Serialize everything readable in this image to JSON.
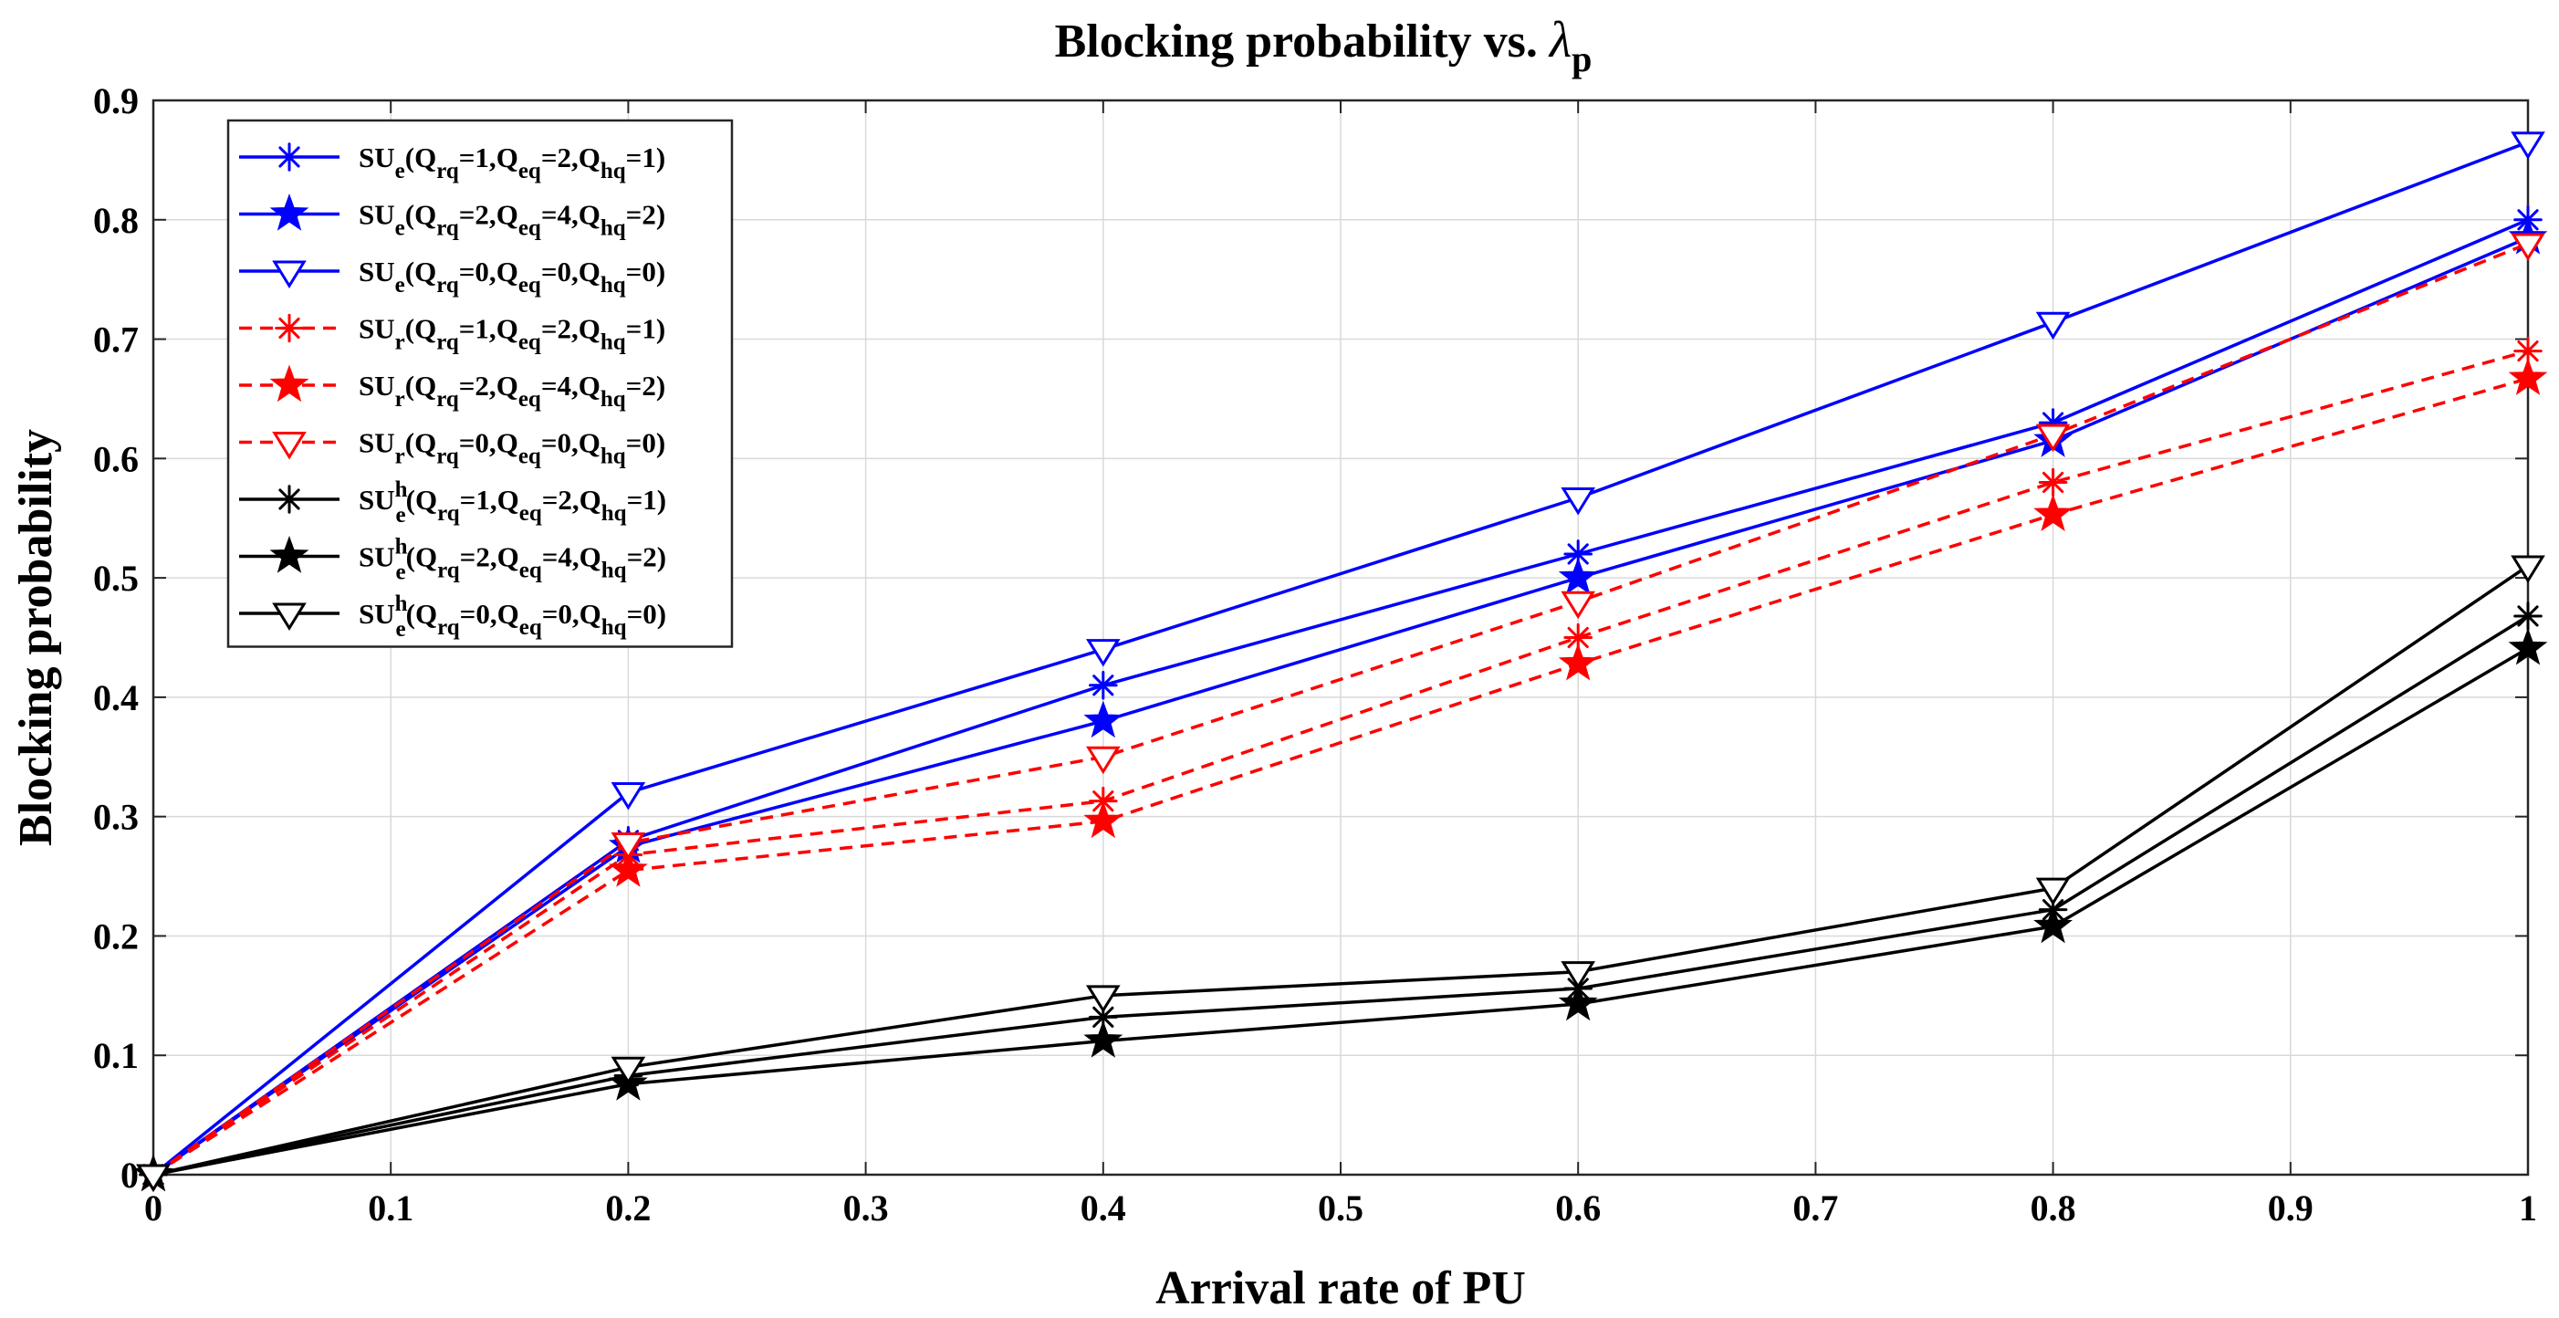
{
  "chart_data": {
    "type": "line",
    "title": "Blocking probability vs. ",
    "title_symbol": "λ",
    "title_symbol_subscript": "p",
    "xlabel": "Arrival rate of PU",
    "ylabel": "Blocking probability",
    "xlim": [
      0,
      1
    ],
    "ylim": [
      0,
      0.9
    ],
    "xticks": [
      "0",
      "0.1",
      "0.2",
      "0.3",
      "0.4",
      "0.5",
      "0.6",
      "0.7",
      "0.8",
      "0.9",
      "1"
    ],
    "yticks": [
      "0",
      "0.1",
      "0.2",
      "0.3",
      "0.4",
      "0.5",
      "0.6",
      "0.7",
      "0.8",
      "0.9"
    ],
    "grid": true,
    "legend_position": "top-left",
    "x": [
      0,
      0.2,
      0.4,
      0.6,
      0.8,
      1.0
    ],
    "series": [
      {
        "name": "SUe(Qrq=1,Qeq=2,Qhq=1)",
        "base": "SU",
        "sub": "e",
        "sup": "",
        "params": [
          [
            "1"
          ],
          [
            "2"
          ],
          [
            "1"
          ]
        ],
        "color": "#0000ff",
        "dash": "solid",
        "marker": "asterisk",
        "values": [
          0,
          0.28,
          0.41,
          0.52,
          0.63,
          0.8
        ]
      },
      {
        "name": "SUe(Qrq=2,Qeq=4,Qhq=2)",
        "base": "SU",
        "sub": "e",
        "sup": "",
        "params": [
          [
            "2"
          ],
          [
            "4"
          ],
          [
            "2"
          ]
        ],
        "color": "#0000ff",
        "dash": "solid",
        "marker": "star",
        "values": [
          0,
          0.275,
          0.38,
          0.5,
          0.615,
          0.785
        ]
      },
      {
        "name": "SUe(Qrq=0,Qeq=0,Qhq=0)",
        "base": "SU",
        "sub": "e",
        "sup": "",
        "params": [
          [
            "0"
          ],
          [
            "0"
          ],
          [
            "0"
          ]
        ],
        "color": "#0000ff",
        "dash": "solid",
        "marker": "triangle-down",
        "values": [
          0,
          0.32,
          0.44,
          0.567,
          0.714,
          0.865
        ]
      },
      {
        "name": "SUr(Qrq=1,Qeq=2,Qhq=1)",
        "base": "SU",
        "sub": "r",
        "sup": "",
        "params": [
          [
            "1"
          ],
          [
            "2"
          ],
          [
            "1"
          ]
        ],
        "color": "#ff0000",
        "dash": "dashed",
        "marker": "asterisk",
        "values": [
          0,
          0.268,
          0.313,
          0.45,
          0.58,
          0.69
        ]
      },
      {
        "name": "SUr(Qrq=2,Qeq=4,Qhq=2)",
        "base": "SU",
        "sub": "r",
        "sup": "",
        "params": [
          [
            "2"
          ],
          [
            "4"
          ],
          [
            "2"
          ]
        ],
        "color": "#ff0000",
        "dash": "dashed",
        "marker": "star",
        "values": [
          0,
          0.255,
          0.296,
          0.428,
          0.553,
          0.667
        ]
      },
      {
        "name": "SUr(Qrq=0,Qeq=0,Qhq=0)",
        "base": "SU",
        "sub": "r",
        "sup": "",
        "params": [
          [
            "0"
          ],
          [
            "0"
          ],
          [
            "0"
          ]
        ],
        "color": "#ff0000",
        "dash": "dashed",
        "marker": "triangle-down",
        "values": [
          0,
          0.278,
          0.35,
          0.48,
          0.62,
          0.78
        ]
      },
      {
        "name": "SUeh(Qrq=1,Qeq=2,Qhq=1)",
        "base": "SU",
        "sub": "e",
        "sup": "h",
        "params": [
          [
            "1"
          ],
          [
            "2"
          ],
          [
            "1"
          ]
        ],
        "color": "#000000",
        "dash": "solid",
        "marker": "asterisk",
        "values": [
          0,
          0.083,
          0.132,
          0.156,
          0.222,
          0.468
        ]
      },
      {
        "name": "SUeh(Qrq=2,Qeq=4,Qhq=2)",
        "base": "SU",
        "sub": "e",
        "sup": "h",
        "params": [
          [
            "2"
          ],
          [
            "4"
          ],
          [
            "2"
          ]
        ],
        "color": "#000000",
        "dash": "solid",
        "marker": "star",
        "values": [
          0,
          0.076,
          0.112,
          0.143,
          0.208,
          0.441
        ]
      },
      {
        "name": "SUeh(Qrq=0,Qeq=0,Qhq=0)",
        "base": "SU",
        "sub": "e",
        "sup": "h",
        "params": [
          [
            "0"
          ],
          [
            "0"
          ],
          [
            "0"
          ]
        ],
        "color": "#000000",
        "dash": "solid",
        "marker": "triangle-down",
        "values": [
          0,
          0.09,
          0.15,
          0.17,
          0.24,
          0.51
        ]
      }
    ],
    "legend_param_names": [
      [
        "Q",
        "rq"
      ],
      [
        "Q",
        "eq"
      ],
      [
        "Q",
        "hq"
      ]
    ]
  }
}
